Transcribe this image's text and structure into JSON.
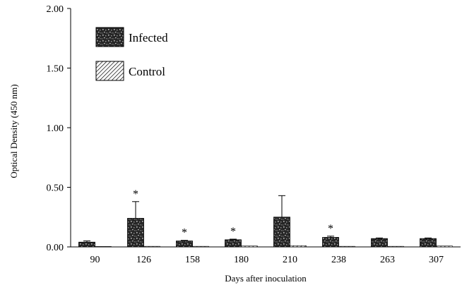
{
  "chart_data": {
    "type": "bar",
    "title": "",
    "xlabel": "Days after inoculation",
    "ylabel": "Optical Density (450 nm)",
    "ylim": [
      0,
      2.0
    ],
    "yticks": [
      "0.00",
      "0.50",
      "1.00",
      "1.50",
      "2.00"
    ],
    "categories": [
      "90",
      "126",
      "158",
      "180",
      "210",
      "238",
      "263",
      "307"
    ],
    "series": [
      {
        "name": "Infected",
        "pattern": "dark-speckled",
        "color": "#2a2a2a",
        "values": [
          0.04,
          0.24,
          0.05,
          0.06,
          0.25,
          0.08,
          0.07,
          0.07
        ],
        "errors": [
          0.01,
          0.14,
          0.005,
          0.005,
          0.18,
          0.01,
          0.005,
          0.005
        ],
        "significant": [
          false,
          true,
          true,
          true,
          false,
          true,
          false,
          false
        ],
        "significance_marker": "*"
      },
      {
        "name": "Control",
        "pattern": "diagonal-hatch",
        "color": "#000000",
        "values": [
          0.0,
          0.005,
          0.005,
          0.008,
          0.01,
          0.005,
          0.005,
          0.008
        ],
        "errors": [
          0,
          0,
          0,
          0,
          0,
          0,
          0,
          0
        ]
      }
    ],
    "legend": "top-left",
    "grid": false
  }
}
